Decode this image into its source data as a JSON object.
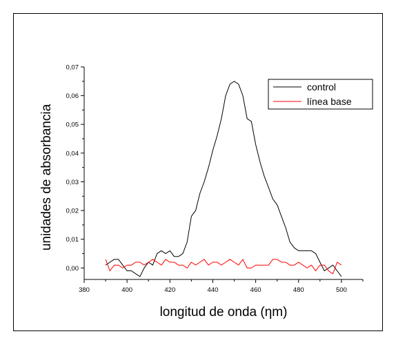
{
  "chart_data": {
    "type": "line",
    "title": "",
    "xlabel": "longitud de onda (ηm)",
    "ylabel": "unidades de absorbancia",
    "xlim": [
      380,
      510
    ],
    "ylim": [
      -0.004,
      0.07
    ],
    "x_ticks": [
      380,
      400,
      420,
      440,
      460,
      480,
      500
    ],
    "y_ticks": [
      0.0,
      0.01,
      0.02,
      0.03,
      0.04,
      0.05,
      0.06,
      0.07
    ],
    "y_tick_labels": [
      "0,00",
      "0,01",
      "0,02",
      "0,03",
      "0,04",
      "0,05",
      "0,06",
      "0,07"
    ],
    "grid": false,
    "legend_position": "top-right",
    "series": [
      {
        "name": "control",
        "color": "#000000",
        "x": [
          390,
          392,
          394,
          396,
          398,
          400,
          402,
          404,
          406,
          408,
          410,
          412,
          414,
          416,
          418,
          420,
          422,
          424,
          426,
          428,
          430,
          432,
          434,
          436,
          438,
          440,
          442,
          444,
          446,
          448,
          450,
          452,
          454,
          456,
          458,
          460,
          462,
          464,
          466,
          468,
          470,
          472,
          474,
          476,
          478,
          480,
          482,
          484,
          486,
          488,
          490,
          492,
          494,
          496,
          498,
          500
        ],
        "y": [
          0.001,
          0.002,
          0.003,
          0.003,
          0.001,
          -0.001,
          -0.001,
          -0.002,
          -0.003,
          0.0,
          0.002,
          0.001,
          0.005,
          0.006,
          0.005,
          0.006,
          0.004,
          0.004,
          0.005,
          0.009,
          0.018,
          0.02,
          0.026,
          0.03,
          0.035,
          0.041,
          0.046,
          0.052,
          0.06,
          0.064,
          0.065,
          0.064,
          0.06,
          0.052,
          0.051,
          0.043,
          0.037,
          0.032,
          0.028,
          0.024,
          0.022,
          0.018,
          0.014,
          0.009,
          0.007,
          0.006,
          0.006,
          0.006,
          0.006,
          0.005,
          0.002,
          -0.001,
          0.0,
          0.001,
          -0.001,
          -0.003
        ]
      },
      {
        "name": "línea base",
        "color": "#ff0000",
        "x": [
          390,
          392,
          394,
          396,
          398,
          400,
          402,
          404,
          406,
          408,
          410,
          412,
          414,
          416,
          418,
          420,
          422,
          424,
          426,
          428,
          430,
          432,
          434,
          436,
          438,
          440,
          442,
          444,
          446,
          448,
          450,
          452,
          454,
          456,
          458,
          460,
          462,
          464,
          466,
          468,
          470,
          472,
          474,
          476,
          478,
          480,
          482,
          484,
          486,
          488,
          490,
          492,
          494,
          496,
          498,
          500
        ],
        "y": [
          0.003,
          -0.001,
          0.001,
          0.001,
          0.0,
          0.001,
          0.001,
          0.002,
          0.002,
          0.001,
          0.002,
          0.003,
          0.002,
          0.001,
          0.003,
          0.002,
          0.002,
          0.001,
          0.001,
          0.0,
          0.002,
          0.001,
          0.002,
          0.003,
          0.001,
          0.002,
          0.002,
          0.001,
          0.002,
          0.003,
          0.002,
          0.001,
          0.003,
          0.0,
          0.0,
          0.001,
          0.001,
          0.001,
          0.001,
          0.003,
          0.003,
          0.002,
          0.002,
          0.001,
          0.001,
          0.002,
          0.001,
          0.0,
          0.001,
          -0.001,
          0.001,
          0.001,
          -0.001,
          -0.002,
          0.002,
          0.001
        ]
      }
    ]
  }
}
